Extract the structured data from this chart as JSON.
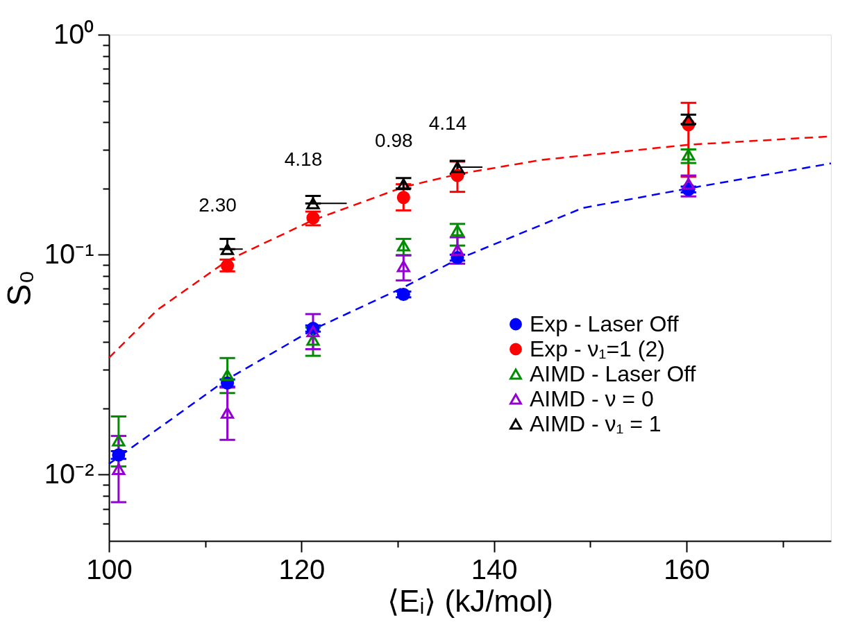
{
  "chart_data": {
    "type": "scatter",
    "xlabel": "⟨Eᵢ⟩ (kJ/mol)",
    "ylabel": "S₀",
    "log": "y",
    "legend": "right",
    "grid": false,
    "xlim": [
      100,
      175
    ],
    "xticks": [
      100,
      {
        "value": 110,
        "label": null
      },
      120,
      {
        "value": 130,
        "label": null
      },
      140,
      {
        "value": 150,
        "label": null
      },
      160,
      {
        "value": 170,
        "label": null
      }
    ],
    "ylim": [
      0.005,
      1
    ],
    "yticks": [
      {
        "value": 0.006,
        "label": null
      },
      {
        "value": 0.007,
        "label": null
      },
      {
        "value": 0.008,
        "label": null
      },
      {
        "value": 0.009,
        "label": null
      },
      {
        "value": 0.01,
        "label": "10⁻²"
      },
      {
        "value": 0.02,
        "label": null
      },
      {
        "value": 0.03,
        "label": null
      },
      {
        "value": 0.04,
        "label": null
      },
      {
        "value": 0.05,
        "label": null
      },
      {
        "value": 0.06,
        "label": null
      },
      {
        "value": 0.07,
        "label": null
      },
      {
        "value": 0.08,
        "label": null
      },
      {
        "value": 0.09,
        "label": null
      },
      {
        "value": 0.1,
        "label": "10⁻¹"
      },
      {
        "value": 0.2,
        "label": null
      },
      {
        "value": 0.3,
        "label": null
      },
      {
        "value": 0.4,
        "label": null
      },
      {
        "value": 0.5,
        "label": null
      },
      {
        "value": 0.6,
        "label": null
      },
      {
        "value": 0.7,
        "label": null
      },
      {
        "value": 0.8,
        "label": null
      },
      {
        "value": 0.9,
        "label": null
      },
      {
        "value": 1,
        "label": "10⁰"
      }
    ],
    "series": [
      {
        "type": "line",
        "line_style": "dashed",
        "color": "#ff0000",
        "x": [
          100,
          105,
          112.3,
          121.1,
          130.6,
          136.2,
          145,
          160.2,
          175
        ],
        "values": [
          0.034,
          0.056,
          0.094,
          0.143,
          0.203,
          0.232,
          0.27,
          0.316,
          0.345
        ]
      },
      {
        "type": "line",
        "line_style": "dashed",
        "color": "#0000ff",
        "x": [
          100,
          112.2,
          121.2,
          130.6,
          136.2,
          149.2,
          160.2,
          175
        ],
        "values": [
          0.0112,
          0.027,
          0.0457,
          0.071,
          0.0952,
          0.163,
          0.2,
          0.26
        ]
      },
      {
        "name": "Exp - Laser Off",
        "marker": "circle",
        "color": "#0000ff",
        "x": [
          101.0,
          112.3,
          121.2,
          130.6,
          136.2,
          160.2
        ],
        "values": [
          0.0123,
          0.0261,
          0.0462,
          0.066,
          0.097,
          0.198
        ],
        "errors": [
          0.0005,
          0.001,
          0.0015,
          0.002,
          0.003,
          0.006
        ]
      },
      {
        "name": "Exp - ν₁=1 (2)",
        "marker": "circle",
        "color": "#ff0000",
        "x": [
          112.3,
          121.2,
          130.6,
          136.2,
          160.2
        ],
        "values": [
          0.089,
          0.147,
          0.182,
          0.229,
          0.39
        ],
        "errors": [
          [
            0.084,
            0.095
          ],
          [
            0.136,
            0.157
          ],
          [
            0.159,
            0.209
          ],
          [
            0.193,
            0.265
          ],
          [
            0.226,
            0.49
          ]
        ]
      },
      {
        "name": "AIMD - Laser Off",
        "marker": "triangle",
        "color": "#008c00",
        "x": [
          101.0,
          112.3,
          121.2,
          130.6,
          136.2,
          160.2
        ],
        "values": [
          0.0143,
          0.0284,
          0.041,
          0.11,
          0.129,
          0.285
        ],
        "errors": [
          [
            0.0109,
            0.0184
          ],
          [
            0.0235,
            0.0339
          ],
          [
            0.0347,
            0.0467
          ],
          [
            0.0995,
            0.118
          ],
          [
            0.11,
            0.138
          ],
          [
            0.261,
            0.301
          ]
        ]
      },
      {
        "name": "AIMD - ν = 0",
        "marker": "triangle",
        "color": "#9400d3",
        "x": [
          101.0,
          112.3,
          121.2,
          130.6,
          136.2,
          160.2
        ],
        "values": [
          0.0106,
          0.0191,
          0.0448,
          0.0885,
          0.105,
          0.21
        ],
        "errors": [
          [
            0.0075,
            0.015
          ],
          [
            0.0144,
            0.0249
          ],
          [
            0.0372,
            0.0537
          ],
          [
            0.0764,
            0.0993
          ],
          [
            0.091,
            0.12
          ],
          [
            0.184,
            0.229
          ]
        ]
      },
      {
        "name": "AIMD - ν₁ = 1",
        "marker": "triangle",
        "color": "#000000",
        "x": [
          112.3,
          121.2,
          130.6,
          136.2,
          160.2
        ],
        "values": [
          0.106,
          0.171,
          0.209,
          0.25,
          0.411
        ],
        "errors": [
          [
            0.106,
            0.118
          ],
          [
            0.171,
            0.185
          ],
          [
            0.2,
            0.223
          ],
          [
            0.233,
            0.267
          ],
          [
            0.393,
            0.433
          ]
        ],
        "xerrors": [
          [
            112.3,
            113.9
          ],
          [
            121.2,
            124.7
          ],
          null,
          [
            136.2,
            138.8
          ],
          null
        ]
      }
    ],
    "annotations": [
      {
        "text": "2.30",
        "x": 112.3,
        "y": 0.106
      },
      {
        "text": "4.18",
        "x": 121.2,
        "y": 0.171
      },
      {
        "text": "0.98",
        "x": 130.6,
        "y": 0.209
      },
      {
        "text": "4.14",
        "x": 136.2,
        "y": 0.25
      }
    ]
  }
}
